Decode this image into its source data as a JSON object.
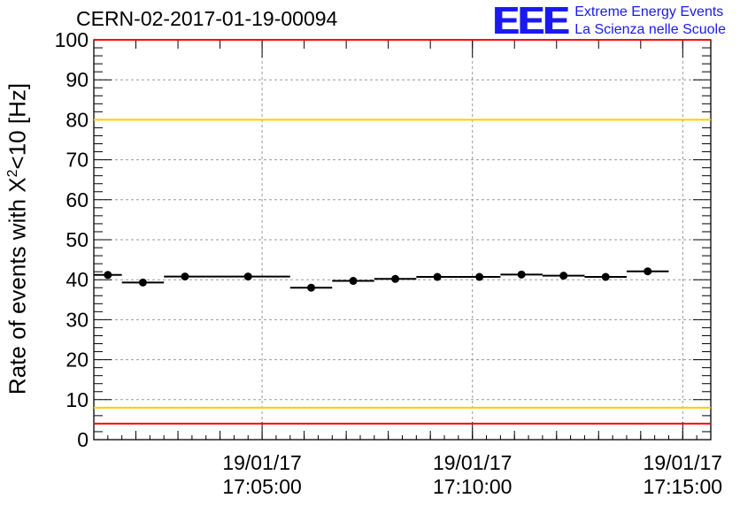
{
  "header": {
    "title": "CERN-02-2017-01-19-00094",
    "logo_mark": "EEE",
    "logo_line1": "Extreme Energy Events",
    "logo_line2": "La Scienza nelle Scuole"
  },
  "chart_data": {
    "type": "scatter",
    "title": "CERN-02-2017-01-19-00094",
    "ylabel_prefix": "Rate of events with X",
    "ylabel_sup": "2",
    "ylabel_suffix": "<10 [Hz]",
    "ylim": [
      0,
      100
    ],
    "yticks": [
      0,
      10,
      20,
      30,
      40,
      50,
      60,
      70,
      80,
      90,
      100
    ],
    "xlim": [
      "17:01:00",
      "17:15:40"
    ],
    "xticks": [
      {
        "time": "17:05:00",
        "date": "19/01/17"
      },
      {
        "time": "17:10:00",
        "date": "19/01/17"
      },
      {
        "time": "17:15:00",
        "date": "19/01/17"
      }
    ],
    "grid": true,
    "reference_lines": [
      {
        "y": 100,
        "color": "#ff0000"
      },
      {
        "y": 80,
        "color": "#ffcc00"
      },
      {
        "y": 8,
        "color": "#ffcc00"
      },
      {
        "y": 4,
        "color": "#ff0000"
      }
    ],
    "points": [
      {
        "start": "17:01:00",
        "end": "17:01:40",
        "y": 41.2
      },
      {
        "start": "17:01:40",
        "end": "17:02:40",
        "y": 39.3
      },
      {
        "start": "17:02:40",
        "end": "17:03:40",
        "y": 40.8
      },
      {
        "start": "17:03:40",
        "end": "17:05:40",
        "y": 40.8
      },
      {
        "start": "17:05:40",
        "end": "17:06:40",
        "y": 38.0
      },
      {
        "start": "17:06:40",
        "end": "17:07:40",
        "y": 39.7
      },
      {
        "start": "17:07:40",
        "end": "17:08:40",
        "y": 40.2
      },
      {
        "start": "17:08:40",
        "end": "17:09:40",
        "y": 40.7
      },
      {
        "start": "17:09:40",
        "end": "17:10:40",
        "y": 40.7
      },
      {
        "start": "17:10:40",
        "end": "17:11:40",
        "y": 41.3
      },
      {
        "start": "17:11:40",
        "end": "17:12:40",
        "y": 41.0
      },
      {
        "start": "17:12:40",
        "end": "17:13:40",
        "y": 40.7
      },
      {
        "start": "17:13:40",
        "end": "17:14:40",
        "y": 42.1
      }
    ]
  }
}
